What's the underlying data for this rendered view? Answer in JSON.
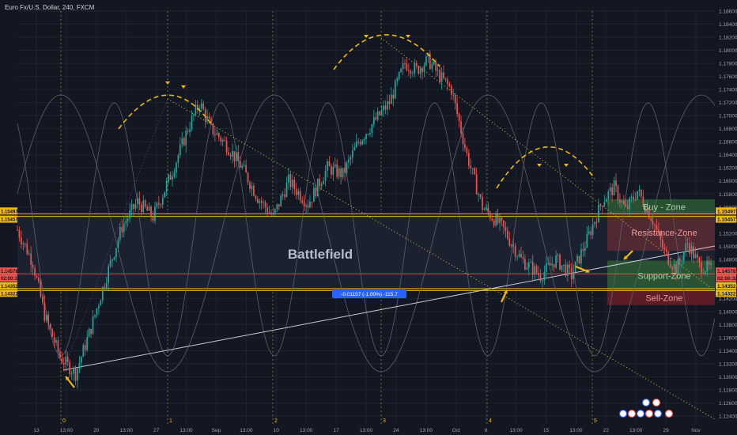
{
  "header": {
    "title": "Euro Fx/U.S. Dollar, 240, FXCM"
  },
  "colors": {
    "bg": "#131722",
    "grid": "#1f2433",
    "up": "#26a69a",
    "down": "#ef5350",
    "gold": "#f0b90b",
    "axis_text": "#9ba1ae",
    "dotted": "#d9c43a"
  },
  "chart_data": {
    "type": "candlestick",
    "title": "Euro Fx/U.S. Dollar, 240, FXCM",
    "ylim": [
      1.1228,
      1.186
    ],
    "y_ticks": [
      "1.18600",
      "1.18400",
      "1.18200",
      "1.18000",
      "1.17800",
      "1.17600",
      "1.17400",
      "1.17200",
      "1.17000",
      "1.16800",
      "1.16600",
      "1.16400",
      "1.16200",
      "1.16000",
      "1.15800",
      "1.15600",
      "1.15400",
      "1.15200",
      "1.15000",
      "1.14800",
      "1.14600",
      "1.14400",
      "1.14200",
      "1.14000",
      "1.13800",
      "1.13600",
      "1.13400",
      "1.13200",
      "1.13000",
      "1.12800",
      "1.12600",
      "1.12400"
    ],
    "x_ticks": [
      "13",
      "13:00",
      "20",
      "13:00",
      "27",
      "13:00",
      "Sep",
      "13:00",
      "10",
      "13:00",
      "17",
      "13:00",
      "24",
      "13:00",
      "Oct",
      "8",
      "13:00",
      "15",
      "13:00",
      "22",
      "13:00",
      "29",
      "Nov"
    ],
    "anchor_points": [
      {
        "t": 0,
        "p": 1.1525
      },
      {
        "t": 8,
        "p": 1.1475
      },
      {
        "t": 14,
        "p": 1.1395
      },
      {
        "t": 22,
        "p": 1.133
      },
      {
        "t": 30,
        "p": 1.1305
      },
      {
        "t": 38,
        "p": 1.1375
      },
      {
        "t": 46,
        "p": 1.1455
      },
      {
        "t": 54,
        "p": 1.153
      },
      {
        "t": 62,
        "p": 1.1568
      },
      {
        "t": 70,
        "p": 1.1545
      },
      {
        "t": 80,
        "p": 1.1615
      },
      {
        "t": 88,
        "p": 1.168
      },
      {
        "t": 94,
        "p": 1.172
      },
      {
        "t": 100,
        "p": 1.168
      },
      {
        "t": 108,
        "p": 1.1655
      },
      {
        "t": 116,
        "p": 1.162
      },
      {
        "t": 124,
        "p": 1.1575
      },
      {
        "t": 132,
        "p": 1.1545
      },
      {
        "t": 140,
        "p": 1.16
      },
      {
        "t": 150,
        "p": 1.1565
      },
      {
        "t": 160,
        "p": 1.162
      },
      {
        "t": 168,
        "p": 1.161
      },
      {
        "t": 176,
        "p": 1.166
      },
      {
        "t": 184,
        "p": 1.169
      },
      {
        "t": 192,
        "p": 1.172
      },
      {
        "t": 200,
        "p": 1.178
      },
      {
        "t": 206,
        "p": 1.177
      },
      {
        "t": 212,
        "p": 1.1785
      },
      {
        "t": 218,
        "p": 1.176
      },
      {
        "t": 224,
        "p": 1.174
      },
      {
        "t": 232,
        "p": 1.164
      },
      {
        "t": 240,
        "p": 1.156
      },
      {
        "t": 250,
        "p": 1.153
      },
      {
        "t": 260,
        "p": 1.148
      },
      {
        "t": 270,
        "p": 1.1455
      },
      {
        "t": 278,
        "p": 1.148
      },
      {
        "t": 286,
        "p": 1.1455
      },
      {
        "t": 294,
        "p": 1.151
      },
      {
        "t": 302,
        "p": 1.157
      },
      {
        "t": 308,
        "p": 1.159
      },
      {
        "t": 314,
        "p": 1.1555
      },
      {
        "t": 320,
        "p": 1.1585
      },
      {
        "t": 328,
        "p": 1.154
      },
      {
        "t": 334,
        "p": 1.149
      },
      {
        "t": 340,
        "p": 1.1465
      },
      {
        "t": 346,
        "p": 1.1505
      },
      {
        "t": 352,
        "p": 1.147
      },
      {
        "t": 358,
        "p": 1.1465
      }
    ],
    "levels": {
      "resistance_top": 1.15497,
      "resistance_bottom": 1.15457,
      "support_top": 1.14352,
      "support_bottom": 1.14322,
      "current": 1.14578
    },
    "price_labels": [
      {
        "value": "1.15497",
        "color": "#f0b90b"
      },
      {
        "value": "1.15457",
        "color": "#f0b90b"
      },
      {
        "value": "1.14578",
        "color": "#ef5350"
      },
      {
        "value": "02:00:32",
        "color": "#ef5350"
      },
      {
        "value": "1.14352",
        "color": "#f0b90b"
      },
      {
        "value": "1.14322",
        "color": "#f0b90b"
      }
    ],
    "zones": [
      {
        "label": "Buy - Zone",
        "price_top": 1.1572,
        "price_bottom": 1.1549,
        "color": "#2e5a34"
      },
      {
        "label": "Resistance-Zone",
        "price_top": 1.1549,
        "price_bottom": 1.1493,
        "color": "#5a2a33"
      },
      {
        "label": "Support-Zone",
        "price_top": 1.1478,
        "price_bottom": 1.1432,
        "color": "#2e5a34"
      },
      {
        "label": "Sell-Zone",
        "price_top": 1.1432,
        "price_bottom": 1.141,
        "color": "#6a1f27"
      }
    ],
    "annotations": {
      "battlefield": "Battlefield",
      "measure": "-0.01157 (-1.00%) -115.7",
      "cycle_numbers": [
        "0",
        "1",
        "2",
        "3",
        "4",
        "5"
      ]
    }
  }
}
